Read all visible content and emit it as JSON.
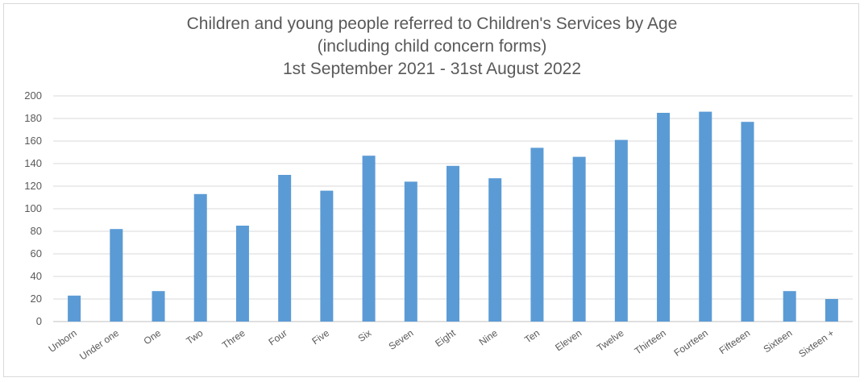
{
  "chart_data": {
    "type": "bar",
    "title": [
      "Children and young people referred to Children's Services by Age",
      "(including child concern forms)",
      "1st September 2021 - 31st August 2022"
    ],
    "categories": [
      "Unborn",
      "Under one",
      "One",
      "Two",
      "Three",
      "Four",
      "Five",
      "Six",
      "Seven",
      "Eight",
      "Nine",
      "Ten",
      "Eleven",
      "Twelve",
      "Thirteen",
      "Fourteen",
      "Fifteeen",
      "Sixteen",
      "Sixteen +"
    ],
    "values": [
      23,
      82,
      27,
      113,
      85,
      130,
      116,
      147,
      124,
      138,
      127,
      154,
      146,
      161,
      185,
      186,
      177,
      27,
      20
    ],
    "ylim": [
      0,
      200
    ],
    "yticks": [
      0,
      20,
      40,
      60,
      80,
      100,
      120,
      140,
      160,
      180,
      200
    ],
    "xlabel": "",
    "ylabel": "",
    "grid": true,
    "legend": "none",
    "bar_color": "#5b9bd5",
    "grid_color": "#d9d9d9"
  }
}
